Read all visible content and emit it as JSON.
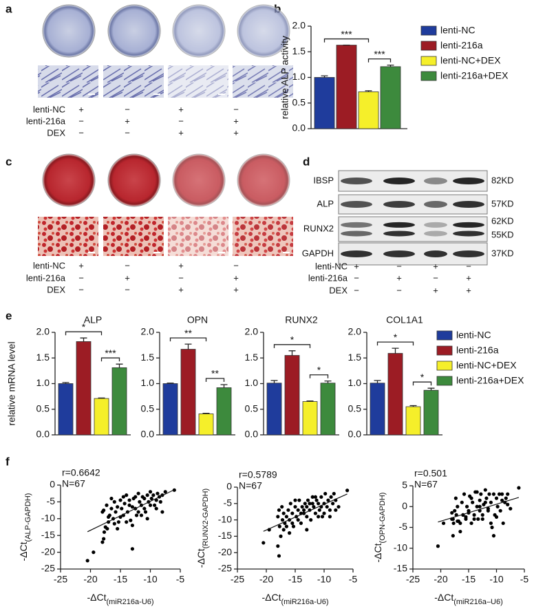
{
  "panel_labels": [
    "a",
    "b",
    "c",
    "d",
    "e",
    "f"
  ],
  "panel_a": {
    "rows": [
      {
        "name": "lenti-NC",
        "signs": [
          "+",
          "−",
          "+",
          "−"
        ]
      },
      {
        "name": "lenti-216a",
        "signs": [
          "−",
          "+",
          "−",
          "+"
        ]
      },
      {
        "name": "DEX",
        "signs": [
          "−",
          "−",
          "+",
          "+"
        ]
      }
    ]
  },
  "panel_c": {
    "rows": [
      {
        "name": "lenti-NC",
        "signs": [
          "+",
          "−",
          "+",
          "−"
        ]
      },
      {
        "name": "lenti-216a",
        "signs": [
          "−",
          "+",
          "−",
          "+"
        ]
      },
      {
        "name": "DEX",
        "signs": [
          "−",
          "−",
          "+",
          "+"
        ]
      }
    ]
  },
  "panel_d": {
    "blots": [
      {
        "name": "IBSP",
        "sizes": [
          "82KD"
        ]
      },
      {
        "name": "ALP",
        "sizes": [
          "57KD"
        ]
      },
      {
        "name": "RUNX2",
        "sizes": [
          "62KD",
          "55KD"
        ]
      },
      {
        "name": "GAPDH",
        "sizes": [
          "37KD"
        ]
      }
    ],
    "rows": [
      {
        "name": "lenti-NC",
        "signs": [
          "+",
          "−",
          "+",
          "−"
        ]
      },
      {
        "name": "lenti-216a",
        "signs": [
          "−",
          "+",
          "−",
          "+"
        ]
      },
      {
        "name": "DEX",
        "signs": [
          "−",
          "−",
          "+",
          "+"
        ]
      }
    ]
  },
  "chart_data": [
    {
      "type": "bar",
      "ylabel": "relative ALP activity",
      "categories": [
        null
      ],
      "series": [
        {
          "name": "lenti-NC",
          "color": "#1f3c9c",
          "values": [
            1.0
          ],
          "errors": [
            0.03
          ]
        },
        {
          "name": "lenti-216a",
          "color": "#9c1c24",
          "values": [
            1.63
          ],
          "errors": [
            0.0
          ]
        },
        {
          "name": "lenti-NC+DEX",
          "color": "#f5ef2a",
          "values": [
            0.72
          ],
          "errors": [
            0.02
          ]
        },
        {
          "name": "lenti-216a+DEX",
          "color": "#3d8a3d",
          "values": [
            1.21
          ],
          "errors": [
            0.03
          ]
        }
      ],
      "ylim": [
        0,
        2
      ],
      "yticks": [
        {
          "value": 0,
          "label": "0.0"
        },
        0.5,
        {
          "value": 1,
          "label": "1.0"
        },
        1.5,
        {
          "value": 2,
          "label": "2.0"
        }
      ],
      "brackets": [
        {
          "label": "***",
          "category": 0,
          "from": 0,
          "to": 2
        },
        {
          "label": "***",
          "category": 0,
          "from": 2,
          "to": 3
        }
      ],
      "legend": "right",
      "facets": false
    },
    {
      "type": "bar",
      "ylabel": "relative mRNA level",
      "categories": [
        "ALP",
        "OPN",
        "RUNX2",
        "COL1A1"
      ],
      "series": [
        {
          "name": "lenti-NC",
          "color": "#1f3c9c",
          "values": [
            1.0,
            1.0,
            1.01,
            1.01
          ],
          "errors": [
            0.02,
            0.01,
            0.05,
            0.05
          ]
        },
        {
          "name": "lenti-216a",
          "color": "#9c1c24",
          "values": [
            1.82,
            1.67,
            1.55,
            1.59
          ],
          "errors": [
            0.07,
            0.1,
            0.09,
            0.1
          ]
        },
        {
          "name": "lenti-NC+DEX",
          "color": "#f5ef2a",
          "values": [
            0.71,
            0.41,
            0.65,
            0.55
          ],
          "errors": [
            0.01,
            0.01,
            0.01,
            0.02
          ]
        },
        {
          "name": "lenti-216a+DEX",
          "color": "#3d8a3d",
          "values": [
            1.31,
            0.92,
            1.01,
            0.87
          ],
          "errors": [
            0.07,
            0.06,
            0.04,
            0.04
          ]
        }
      ],
      "ylim": [
        0,
        2
      ],
      "yticks": [
        {
          "value": 0,
          "label": "0.0"
        },
        0.5,
        {
          "value": 1,
          "label": "1.0"
        },
        1.5,
        {
          "value": 2,
          "label": "2.0"
        }
      ],
      "brackets": [
        {
          "label": "*",
          "category": 0,
          "from": 0,
          "to": 2
        },
        {
          "label": "***",
          "category": 0,
          "from": 2,
          "to": 3
        },
        {
          "label": "**",
          "category": 1,
          "from": 0,
          "to": 2
        },
        {
          "label": "**",
          "category": 1,
          "from": 2,
          "to": 3
        },
        {
          "label": "*",
          "category": 2,
          "from": 0,
          "to": 2
        },
        {
          "label": "*",
          "category": 2,
          "from": 2,
          "to": 3
        },
        {
          "label": "*",
          "category": 3,
          "from": 0,
          "to": 2
        },
        {
          "label": "*",
          "category": 3,
          "from": 2,
          "to": 3
        }
      ],
      "legend": "right",
      "facets": true
    },
    {
      "type": "scatter",
      "xlabel": "-ΔCt",
      "xlabel_sub": "(miR216a-U6)",
      "ylabel": "-ΔCt",
      "ylabel_sub": "(ALP-GAPDH)",
      "annotations": [
        "r=0.6642",
        "N=67"
      ],
      "color": "#000000",
      "fit_line": true,
      "x": [
        -20.5,
        -19.5,
        -18,
        -17.8,
        -17.5,
        -17.7,
        -17.2,
        -17,
        -16.8,
        -17.8,
        -18,
        -17.3,
        -16.5,
        -16.2,
        -16,
        -15.8,
        -15.5,
        -15.3,
        -15,
        -14.8,
        -14.5,
        -14.3,
        -14,
        -13.8,
        -13.5,
        -13.3,
        -13,
        -13,
        -12.8,
        -12.5,
        -12.3,
        -12,
        -11.8,
        -11.5,
        -11.3,
        -11,
        -10.8,
        -10.5,
        -10.3,
        -10,
        -9.8,
        -9.5,
        -9.3,
        -9,
        -8.8,
        -8.5,
        -8.3,
        -8,
        -7.5,
        -6,
        -15.5,
        -16.5,
        -14,
        -13,
        -12,
        -11,
        -10,
        -14.5,
        -15,
        -16,
        -17,
        -12.5,
        -13.5,
        -11.5,
        -9,
        -10.5,
        -8
      ],
      "y": [
        -22.5,
        -20,
        -17,
        -16,
        -12.5,
        -14,
        -13,
        -11,
        -9,
        -7.5,
        -8,
        -6,
        -7,
        -10,
        -5,
        -8,
        -6.5,
        -11,
        -4.5,
        -7,
        -9,
        -5.5,
        -3,
        -8,
        -6,
        -10.5,
        -12,
        -19,
        -4,
        -7,
        -9,
        -2.5,
        -5,
        -6,
        -3.5,
        -4,
        -8,
        -3,
        -5,
        -2,
        -4,
        -3,
        -6,
        -4.5,
        -2.5,
        -3.5,
        -5,
        -3,
        -2,
        -1.5,
        -13,
        -4,
        -11,
        -6.5,
        -8,
        -7,
        -6,
        -3.5,
        -9.5,
        -11.5,
        -9.5,
        -3.5,
        -4.5,
        -9,
        -7,
        -10,
        -8
      ],
      "xlim": [
        -25,
        -5
      ],
      "xticks": [
        -25,
        -20,
        -15,
        -10,
        -5
      ],
      "ylim": [
        -25,
        0
      ],
      "yticks": [
        -25,
        -20,
        -15,
        -10,
        -5,
        0
      ]
    },
    {
      "type": "scatter",
      "xlabel": "-ΔCt",
      "xlabel_sub": "(miR216a-U6)",
      "ylabel": "-ΔCt",
      "ylabel_sub": "(RUNX2-GAPDH)",
      "annotations": [
        "r=0.5789",
        "N=67"
      ],
      "color": "#000000",
      "fit_line": true,
      "x": [
        -20.5,
        -19.5,
        -18,
        -17.8,
        -17.5,
        -17.7,
        -17.2,
        -17,
        -16.8,
        -17.8,
        -18,
        -17.3,
        -16.5,
        -16.2,
        -16,
        -15.8,
        -15.5,
        -15.3,
        -15,
        -14.8,
        -14.5,
        -14.3,
        -14,
        -13.8,
        -13.5,
        -13.3,
        -13,
        -13,
        -12.8,
        -12.5,
        -12.3,
        -12,
        -11.8,
        -11.5,
        -11.3,
        -11,
        -10.8,
        -10.5,
        -10.3,
        -10,
        -9.8,
        -9.5,
        -9.3,
        -9,
        -8.8,
        -8.5,
        -8.3,
        -8,
        -7.5,
        -6,
        -15.5,
        -16.5,
        -14,
        -13,
        -12,
        -11,
        -10,
        -14.5,
        -15,
        -16,
        -17,
        -12.5,
        -13.5,
        -11.5,
        -9,
        -10.5,
        -8
      ],
      "y": [
        -17,
        -13,
        -18,
        -21,
        -15,
        -12,
        -10,
        -8,
        -11,
        -7,
        -9,
        -6,
        -9,
        -7,
        -10,
        -5,
        -8,
        -12,
        -6,
        -9,
        -7,
        -4,
        -11,
        -6,
        -8,
        -5,
        -13,
        -9,
        -4,
        -7,
        -10,
        -3,
        -6,
        -8,
        -4,
        -5,
        -7,
        -3,
        -9,
        -5,
        -2,
        -6,
        -4,
        -7,
        -3,
        -5,
        -2,
        -4,
        -6,
        -1,
        -11,
        -12,
        -8,
        -6,
        -5,
        -9,
        -8,
        -10,
        -4,
        -14,
        -13,
        -5,
        -7,
        -3,
        -9,
        -6,
        -7
      ],
      "xlim": [
        -25,
        -5
      ],
      "xticks": [
        -25,
        -20,
        -15,
        -10,
        -5
      ],
      "ylim": [
        -25,
        0
      ],
      "yticks": [
        -25,
        -20,
        -15,
        -10,
        -5,
        0
      ]
    },
    {
      "type": "scatter",
      "xlabel": "-ΔCt",
      "xlabel_sub": "(miR216a–U6)",
      "ylabel": "-ΔCt",
      "ylabel_sub": "(OPN-GAPDH)",
      "annotations": [
        "r=0.501",
        "N=67"
      ],
      "color": "#000000",
      "fit_line": true,
      "x": [
        -20.5,
        -19.5,
        -18,
        -17.8,
        -17.5,
        -17.7,
        -17.2,
        -17,
        -16.8,
        -17.8,
        -18,
        -17.3,
        -16.5,
        -16.2,
        -16,
        -15.8,
        -15.5,
        -15.3,
        -15,
        -14.8,
        -14.5,
        -14.3,
        -14,
        -13.8,
        -13.5,
        -13.3,
        -13,
        -13,
        -12.8,
        -12.5,
        -12.3,
        -12,
        -11.8,
        -11.5,
        -11.3,
        -11,
        -10.8,
        -10.5,
        -10.3,
        -10,
        -9.8,
        -9.5,
        -9.3,
        -9,
        -8.8,
        -8.5,
        -8.3,
        -8,
        -7.5,
        -6,
        -15.5,
        -16.5,
        -14,
        -13,
        -12,
        -11,
        -10,
        -14.5,
        -15,
        -16,
        -17,
        -12.5,
        -13.5,
        -11.5,
        -9,
        -10.5,
        -8
      ],
      "y": [
        -9.5,
        -4,
        -3,
        -7,
        -1,
        -4,
        -2,
        0,
        -3.5,
        -3,
        -1.5,
        2,
        -4,
        1,
        -2,
        3,
        -3,
        0,
        -1,
        2.5,
        -4,
        1,
        -2,
        3.5,
        0,
        -3,
        1.5,
        -1,
        3,
        -2,
        0.5,
        4,
        2,
        -1,
        3,
        1,
        -5,
        3,
        -2,
        2,
        0,
        3,
        -1,
        3,
        -4,
        1,
        2,
        3,
        -0.5,
        4.5,
        -2.5,
        -6,
        -3,
        0,
        1,
        -4,
        -2.5,
        2,
        -1.5,
        -2,
        -3.5,
        -3,
        3.5,
        -0.5,
        1.5,
        -7,
        0.5
      ],
      "xlim": [
        -25,
        -5
      ],
      "xticks": [
        -25,
        -20,
        -15,
        -10,
        -5
      ],
      "ylim": [
        -15,
        5
      ],
      "yticks": [
        -15,
        -10,
        -5,
        0,
        5
      ]
    }
  ]
}
